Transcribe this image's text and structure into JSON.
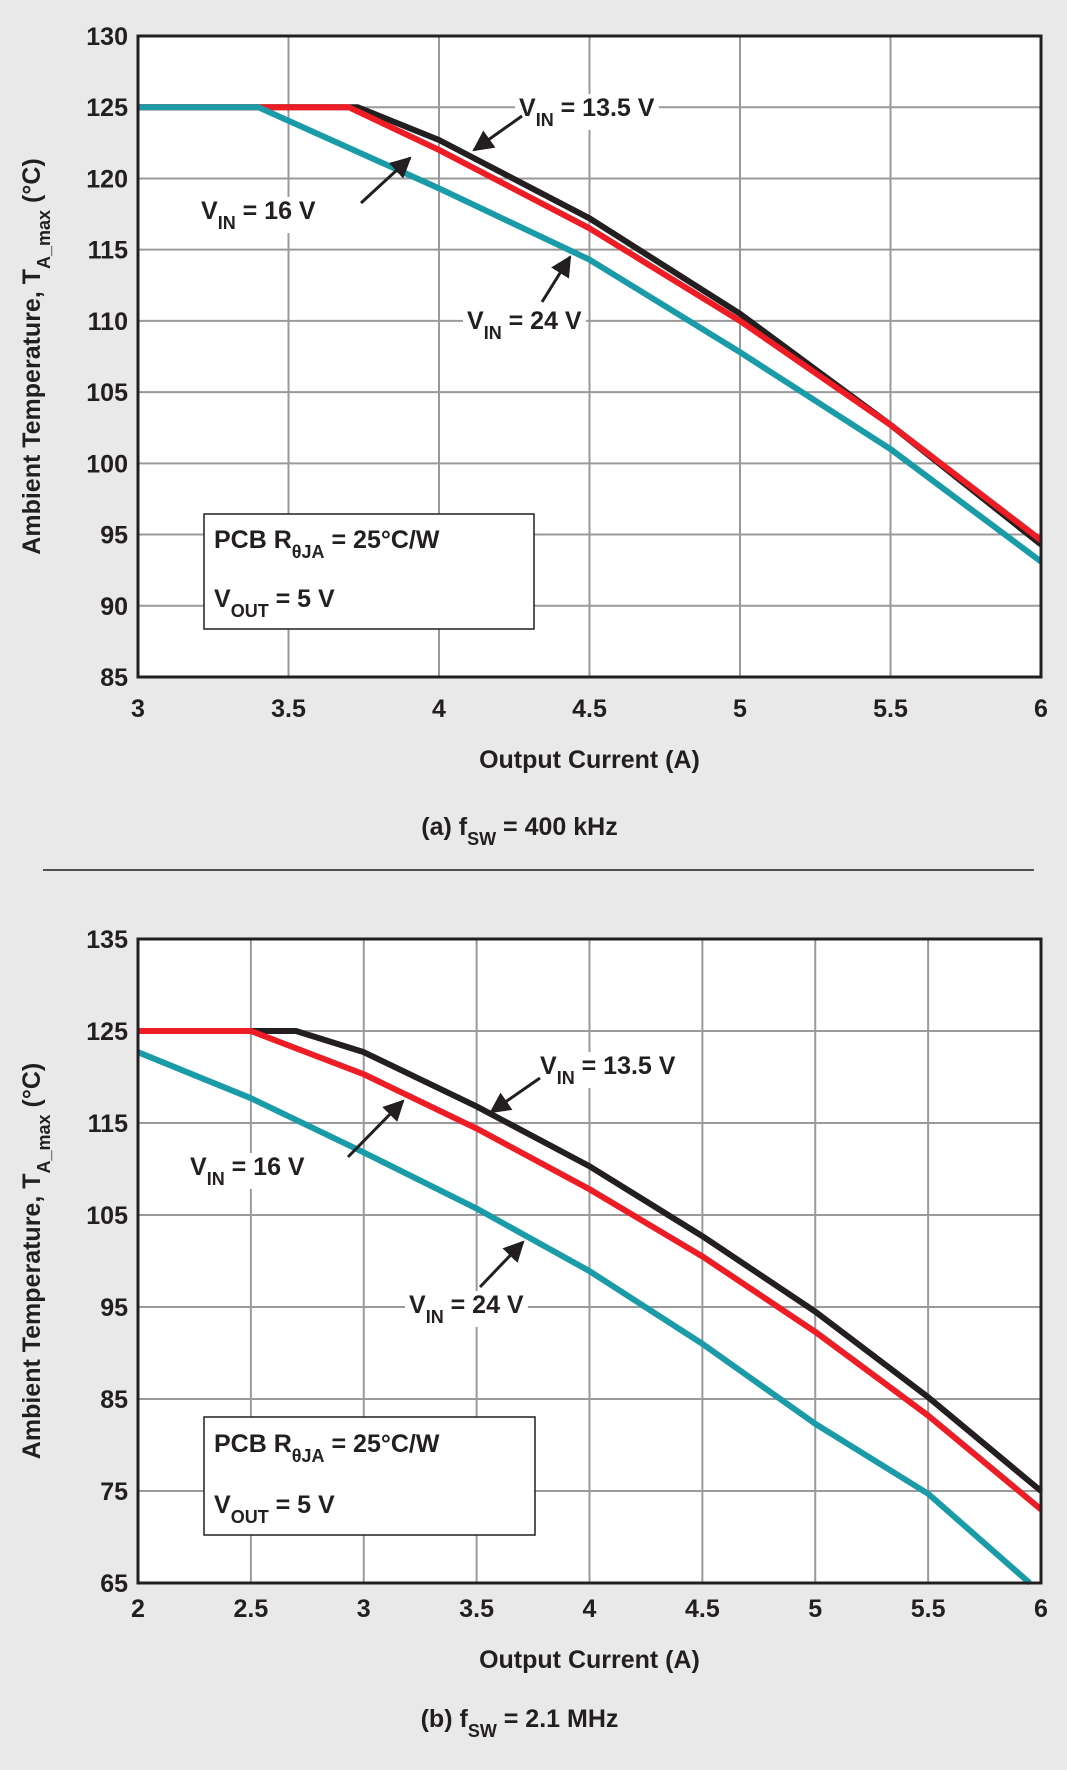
{
  "chart_data": [
    {
      "type": "line",
      "x_label": "Output Current (A)",
      "y_label": [
        {
          "text": "Ambient Temperature, T"
        },
        {
          "text": "A_max",
          "sub": true
        },
        {
          "text": "  (°C)"
        }
      ],
      "caption": [
        {
          "text": "(a) f"
        },
        {
          "text": "SW",
          "sub": true
        },
        {
          "text": " = 400 kHz"
        }
      ],
      "xlim": [
        3,
        6
      ],
      "ylim": [
        85,
        130
      ],
      "xticks": [
        3,
        3.5,
        4,
        4.5,
        5,
        5.5,
        6
      ],
      "yticks": [
        85,
        90,
        95,
        100,
        105,
        110,
        115,
        120,
        125,
        130
      ],
      "grid": true,
      "series": [
        {
          "name": [
            {
              "text": "V"
            },
            {
              "text": "IN",
              "sub": true
            },
            {
              "text": " = 13.5 V"
            }
          ],
          "color": "#231f20",
          "x": [
            3,
            3.73,
            4,
            4.5,
            5,
            5.5,
            6
          ],
          "values": [
            125,
            125,
            122.7,
            117.2,
            110.5,
            102.7,
            94.3
          ]
        },
        {
          "name": [
            {
              "text": "V"
            },
            {
              "text": "IN",
              "sub": true
            },
            {
              "text": " = 16 V"
            }
          ],
          "color": "#ee1c25",
          "x": [
            3,
            3.7,
            4,
            4.5,
            5,
            5.5,
            6
          ],
          "values": [
            125,
            125,
            122,
            116.5,
            110,
            102.7,
            94.6
          ]
        },
        {
          "name": [
            {
              "text": "V"
            },
            {
              "text": "IN",
              "sub": true
            },
            {
              "text": " = 24 V"
            }
          ],
          "color": "#1a9ba8",
          "x": [
            3,
            3.4,
            4,
            4.5,
            5,
            5.5,
            6
          ],
          "values": [
            125,
            125,
            119.3,
            114.3,
            107.8,
            101,
            93.1
          ]
        }
      ],
      "annotations": [
        [
          {
            "text": "PCB R"
          },
          {
            "text": "θJA",
            "sub": true
          },
          {
            "text": " = 25°C/W"
          }
        ],
        [
          {
            "text": "V"
          },
          {
            "text": "OUT",
            "sub": true
          },
          {
            "text": " = 5 V"
          }
        ]
      ]
    },
    {
      "type": "line",
      "x_label": "Output Current (A)",
      "y_label": [
        {
          "text": "Ambient Temperature, T"
        },
        {
          "text": "A_max",
          "sub": true
        },
        {
          "text": "  (°C)"
        }
      ],
      "caption": [
        {
          "text": "(b) f"
        },
        {
          "text": "SW",
          "sub": true
        },
        {
          "text": " = 2.1 MHz"
        }
      ],
      "xlim": [
        2,
        6
      ],
      "ylim": [
        65,
        135
      ],
      "xticks": [
        2,
        2.5,
        3,
        3.5,
        4,
        4.5,
        5,
        5.5,
        6
      ],
      "yticks": [
        65,
        75,
        85,
        95,
        105,
        115,
        125,
        135
      ],
      "grid": true,
      "series": [
        {
          "name": [
            {
              "text": "V"
            },
            {
              "text": "IN",
              "sub": true
            },
            {
              "text": " = 13.5 V"
            }
          ],
          "color": "#231f20",
          "x": [
            2,
            2.7,
            3,
            3.5,
            4,
            4.5,
            5,
            5.5,
            6
          ],
          "values": [
            125,
            125,
            122.7,
            116.8,
            110.3,
            102.7,
            94.5,
            85.2,
            75
          ]
        },
        {
          "name": [
            {
              "text": "V"
            },
            {
              "text": "IN",
              "sub": true
            },
            {
              "text": " = 16 V"
            }
          ],
          "color": "#ee1c25",
          "x": [
            2,
            2.5,
            3,
            3.5,
            4,
            4.5,
            5,
            5.5,
            6
          ],
          "values": [
            125,
            125,
            120.3,
            114.4,
            107.8,
            100.5,
            92.3,
            83.2,
            73
          ]
        },
        {
          "name": [
            {
              "text": "V"
            },
            {
              "text": "IN",
              "sub": true
            },
            {
              "text": " = 24 V"
            }
          ],
          "color": "#1a9ba8",
          "x": [
            2,
            2.5,
            3,
            3.5,
            4,
            4.5,
            5,
            5.5,
            5.95
          ],
          "values": [
            122.7,
            117.7,
            111.8,
            105.7,
            98.9,
            91,
            82.3,
            74.7,
            65
          ]
        }
      ],
      "annotations": [
        [
          {
            "text": "PCB R"
          },
          {
            "text": "θJA",
            "sub": true
          },
          {
            "text": " = 25°C/W"
          }
        ],
        [
          {
            "text": "V"
          },
          {
            "text": "OUT",
            "sub": true
          },
          {
            "text": " = 5 V"
          }
        ]
      ]
    }
  ]
}
